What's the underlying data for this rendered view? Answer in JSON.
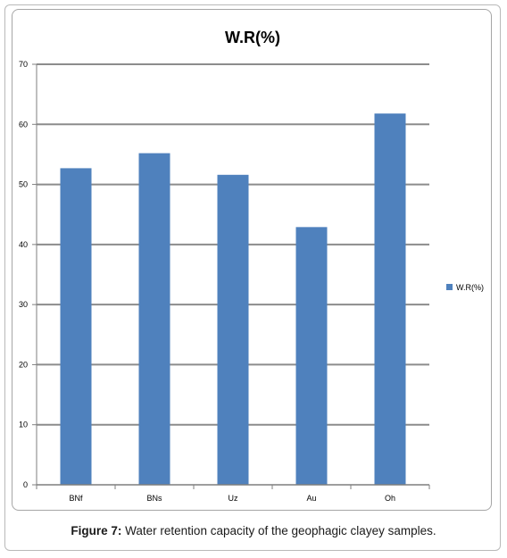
{
  "chart_data": {
    "type": "bar",
    "title": "W.R(%)",
    "categories": [
      "BNf",
      "BNs",
      "Uz",
      "Au",
      "Oh"
    ],
    "series": [
      {
        "name": "W.R(%)",
        "values": [
          52.7,
          55.2,
          51.6,
          42.9,
          61.8
        ]
      }
    ],
    "ylim": [
      0,
      70
    ],
    "yticks": [
      "0",
      "10",
      "20",
      "30",
      "40",
      "50",
      "60",
      "70"
    ],
    "grid": true,
    "legend": "right",
    "bar_color": "#4f81bd",
    "grid_color": "#8c8c8c"
  },
  "caption": {
    "label": "Figure 7:",
    "text": " Water retention capacity of the geophagic clayey samples."
  }
}
